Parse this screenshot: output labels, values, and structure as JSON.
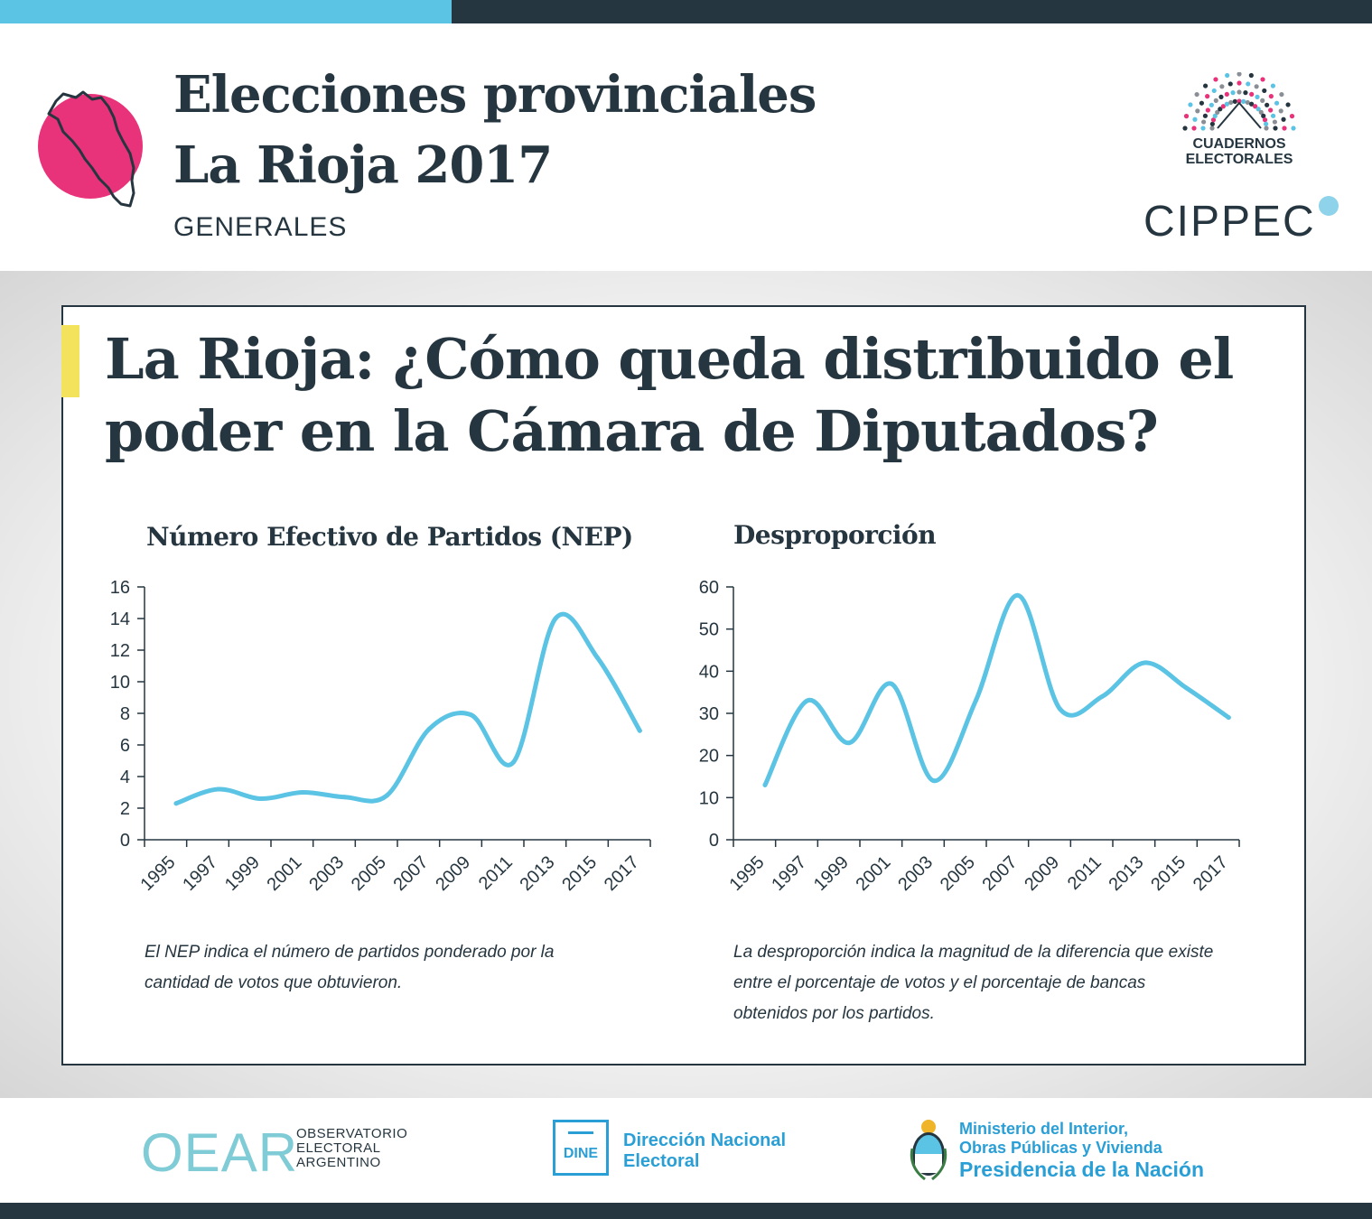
{
  "header": {
    "title_line1": "Elecciones provinciales",
    "title_line2": "La Rioja 2017",
    "subtitle": "GENERALES",
    "cuadernos_line1": "CUADERNOS",
    "cuadernos_line2": "ELECTORALES",
    "cippec": "CIPPEC",
    "colors": {
      "accent_pink": "#e8327a",
      "accent_blue": "#5bc3e4",
      "dark": "#263640",
      "yellow": "#f2e25c"
    }
  },
  "card": {
    "title": "La Rioja: ¿Cómo queda distribuido el poder en la Cámara de Diputados?"
  },
  "chart_data": [
    {
      "type": "line",
      "title": "Número Efectivo de Partidos (NEP)",
      "x": [
        "1995",
        "1997",
        "1999",
        "2001",
        "2003",
        "2005",
        "2007",
        "2009",
        "2011",
        "2013",
        "2015",
        "2017"
      ],
      "values": [
        2.3,
        3.2,
        2.6,
        3.0,
        2.7,
        2.8,
        7.0,
        7.9,
        4.9,
        14.0,
        11.5,
        6.9
      ],
      "ylim": [
        0,
        16
      ],
      "yticks": [
        "0",
        "2",
        "4",
        "6",
        "8",
        "10",
        "12",
        "14",
        "16"
      ],
      "line_color": "#5bc3e4",
      "note": "El NEP indica el número de partidos ponderado por la cantidad de votos que obtuvieron."
    },
    {
      "type": "line",
      "title": "Desproporción",
      "x": [
        "1995",
        "1997",
        "1999",
        "2001",
        "2003",
        "2005",
        "2007",
        "2009",
        "2011",
        "2013",
        "2015",
        "2017"
      ],
      "values": [
        13,
        33,
        23,
        37,
        14,
        33,
        58,
        31,
        34,
        42,
        36,
        29
      ],
      "ylim": [
        0,
        60
      ],
      "yticks": [
        "0",
        "10",
        "20",
        "30",
        "40",
        "50",
        "60"
      ],
      "line_color": "#5bc3e4",
      "note": "La desproporción indica la magnitud de la diferencia que existe entre el porcentaje de votos y el porcentaje de bancas obtenidos por los partidos."
    }
  ],
  "footer": {
    "oear_big": "OEAR",
    "oear_line1": "OBSERVATORIO",
    "oear_line2": "ELECTORAL",
    "oear_line3": "ARGENTINO",
    "dine_box": "DINE",
    "dine_line1": "Dirección Nacional",
    "dine_line2": "Electoral",
    "ministerio_line1": "Ministerio del Interior,",
    "ministerio_line2": "Obras Públicas y Vivienda",
    "presidencia": "Presidencia de la Nación"
  }
}
